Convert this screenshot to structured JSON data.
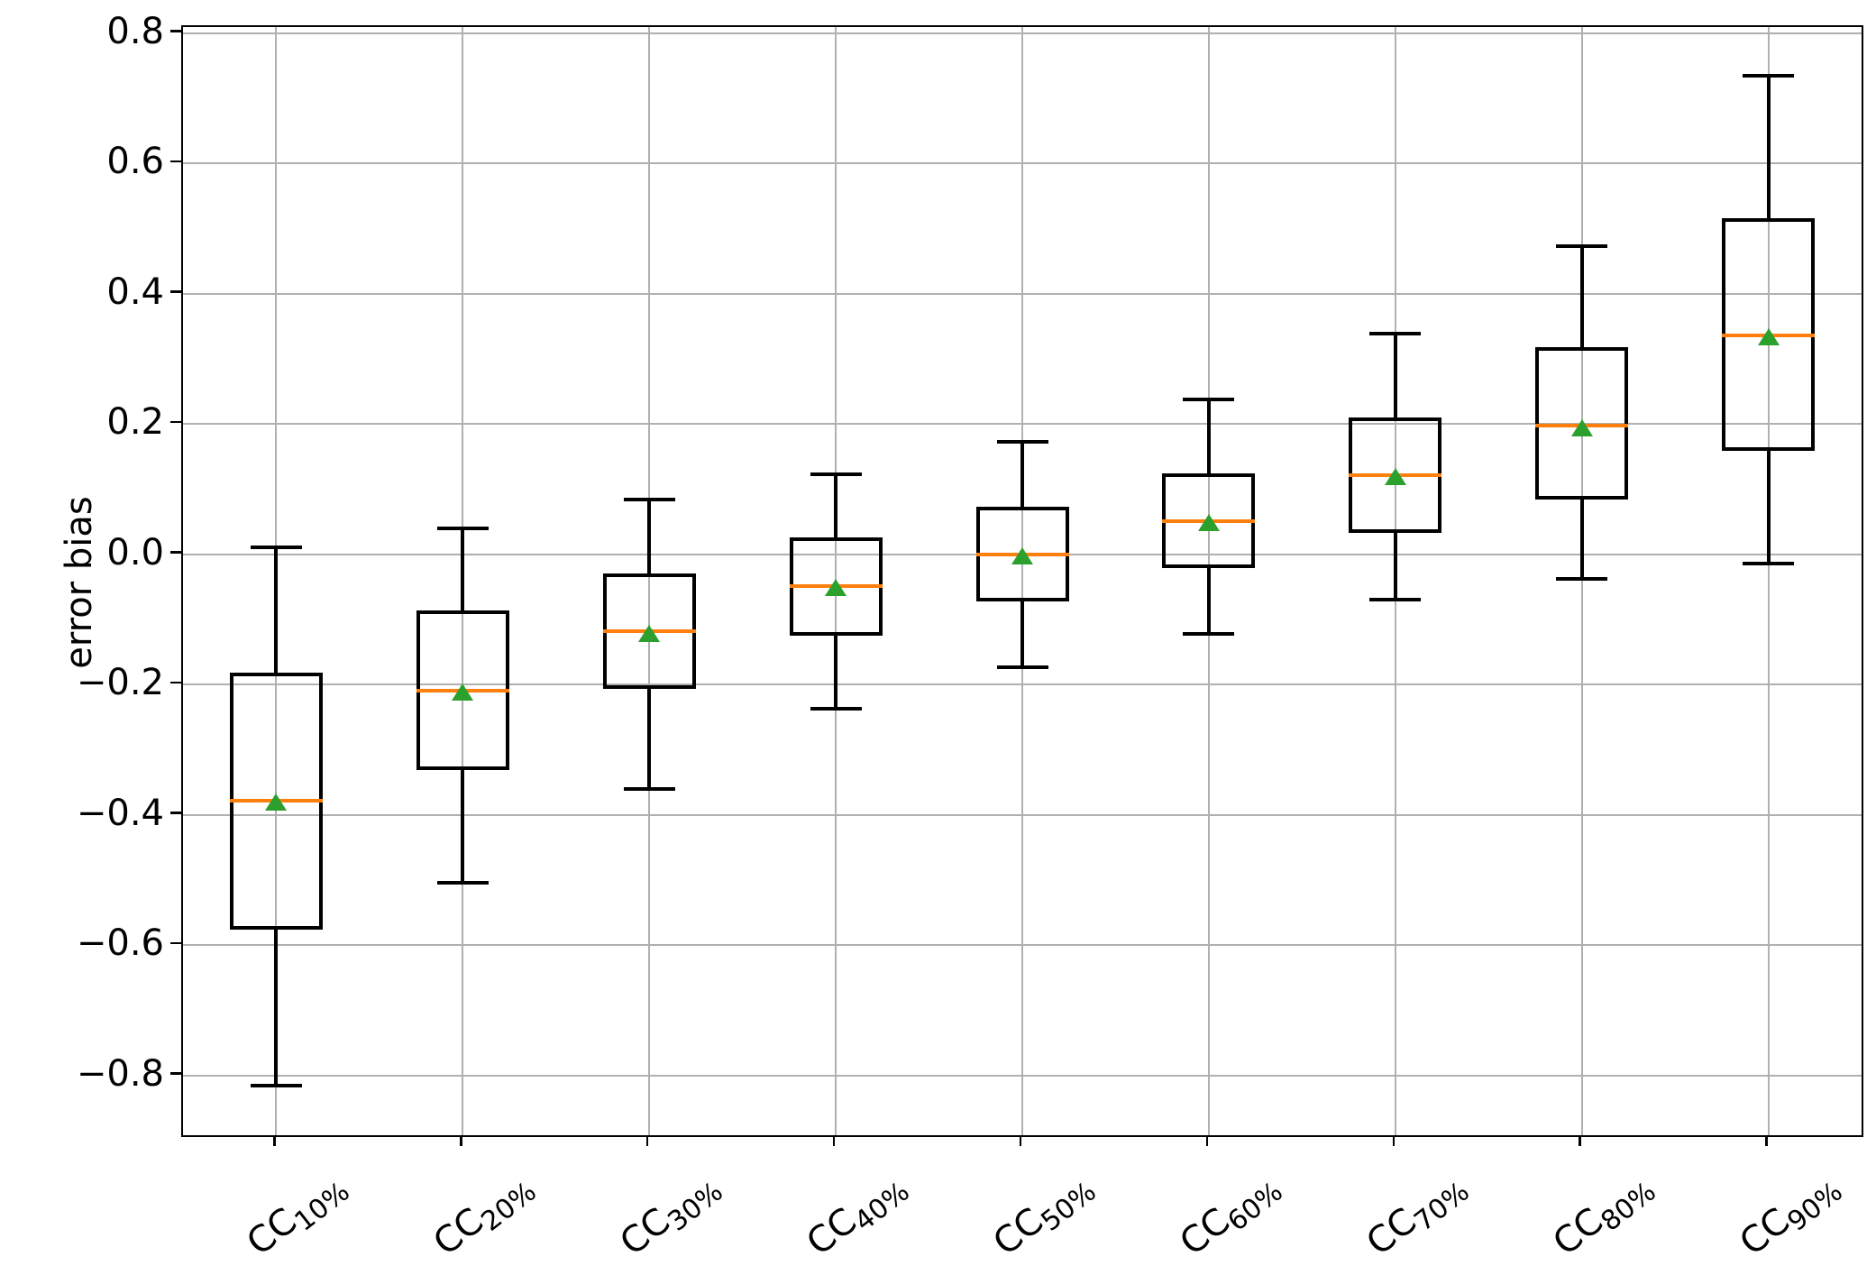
{
  "chart_data": {
    "type": "boxplot",
    "title": "",
    "xlabel": "",
    "ylabel": "error bias",
    "ylim": [
      -0.892,
      0.809
    ],
    "grid": true,
    "legend": "none",
    "y_ticks": [
      {
        "value": 0.8,
        "label": "0.8"
      },
      {
        "value": 0.6,
        "label": "0.6"
      },
      {
        "value": 0.4,
        "label": "0.4"
      },
      {
        "value": 0.2,
        "label": "0.2"
      },
      {
        "value": 0.0,
        "label": "0.0"
      },
      {
        "value": -0.2,
        "label": "−0.2"
      },
      {
        "value": -0.4,
        "label": "−0.4"
      },
      {
        "value": -0.6,
        "label": "−0.6"
      },
      {
        "value": -0.8,
        "label": "−0.8"
      }
    ],
    "x_tick_label_rotation_deg": 38,
    "categories": [
      {
        "label_main": "CC",
        "label_sub": "10%",
        "whislo": -0.816,
        "q1": -0.576,
        "med": -0.378,
        "mean": -0.381,
        "q3": -0.182,
        "whishi": 0.011
      },
      {
        "label_main": "CC",
        "label_sub": "20%",
        "whislo": -0.505,
        "q1": -0.332,
        "med": -0.209,
        "mean": -0.212,
        "q3": -0.086,
        "whishi": 0.039
      },
      {
        "label_main": "CC",
        "label_sub": "30%",
        "whislo": -0.36,
        "q1": -0.207,
        "med": -0.119,
        "mean": -0.122,
        "q3": -0.03,
        "whishi": 0.084
      },
      {
        "label_main": "CC",
        "label_sub": "40%",
        "whislo": -0.238,
        "q1": -0.125,
        "med": -0.049,
        "mean": -0.051,
        "q3": 0.026,
        "whishi": 0.123
      },
      {
        "label_main": "CC",
        "label_sub": "50%",
        "whislo": -0.173,
        "q1": -0.073,
        "med": -0.001,
        "mean": -0.003,
        "q3": 0.073,
        "whishi": 0.173
      },
      {
        "label_main": "CC",
        "label_sub": "60%",
        "whislo": -0.122,
        "q1": -0.022,
        "med": 0.051,
        "mean": 0.048,
        "q3": 0.124,
        "whishi": 0.238
      },
      {
        "label_main": "CC",
        "label_sub": "70%",
        "whislo": -0.07,
        "q1": 0.033,
        "med": 0.121,
        "mean": 0.119,
        "q3": 0.21,
        "whishi": 0.338
      },
      {
        "label_main": "CC",
        "label_sub": "80%",
        "whislo": -0.038,
        "q1": 0.084,
        "med": 0.197,
        "mean": 0.194,
        "q3": 0.317,
        "whishi": 0.473
      },
      {
        "label_main": "CC",
        "label_sub": "90%",
        "whislo": -0.014,
        "q1": 0.158,
        "med": 0.335,
        "mean": 0.333,
        "q3": 0.515,
        "whishi": 0.734
      }
    ],
    "colors": {
      "median": "#ff7f0e",
      "mean_marker": "#2ca02c",
      "box_line": "#000000",
      "grid": "#b0b0b0",
      "spine": "#000000",
      "background": "#ffffff"
    },
    "mean_marker_shape": "triangle_up"
  }
}
